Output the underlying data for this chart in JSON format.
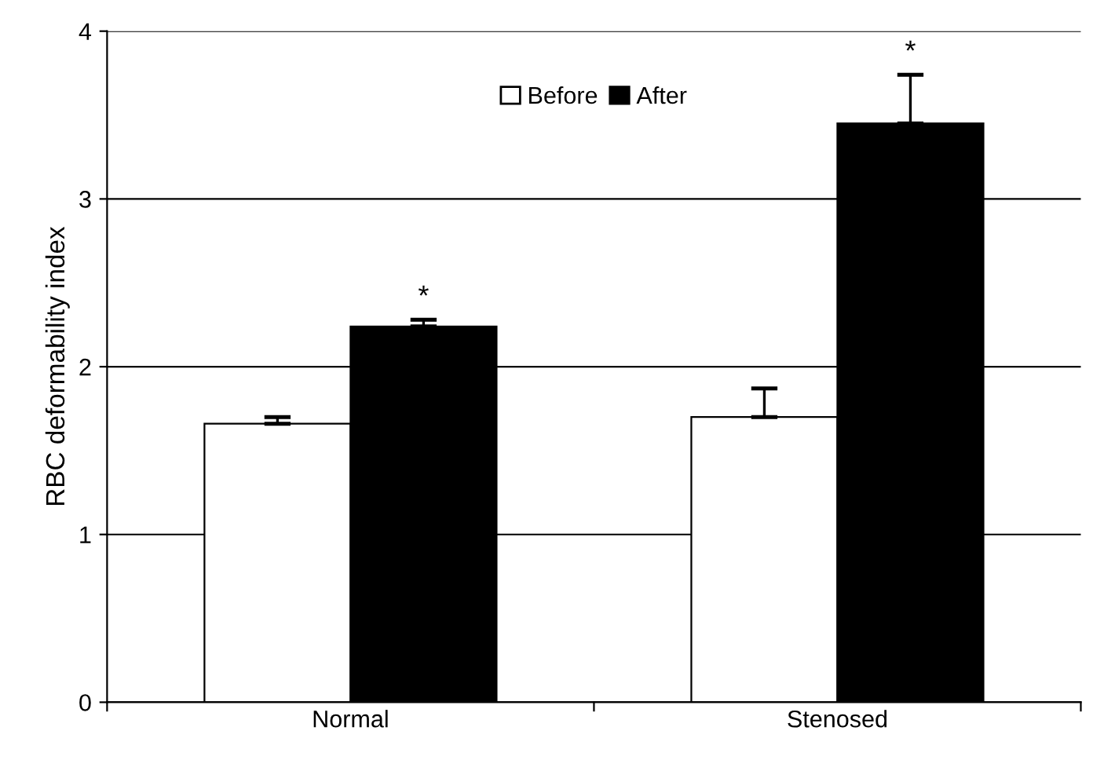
{
  "chart_data": {
    "type": "bar",
    "ylabel": "RBC deformability index",
    "categories": [
      "Normal",
      "Stenosed"
    ],
    "series": [
      {
        "name": "Before",
        "color": "#ffffff",
        "values": [
          1.66,
          1.7
        ],
        "errors": [
          [
            1.66,
            1.7
          ],
          [
            1.7,
            1.87
          ]
        ]
      },
      {
        "name": "After",
        "color": "#000000",
        "values": [
          2.24,
          3.45
        ],
        "errors": [
          [
            2.24,
            2.28
          ],
          [
            3.45,
            3.74
          ]
        ]
      }
    ],
    "ylim": [
      0,
      4
    ],
    "yticks": [
      0,
      1,
      2,
      3,
      4
    ],
    "grid": "y",
    "legend": "top",
    "annotations": [
      "*",
      "*"
    ]
  }
}
